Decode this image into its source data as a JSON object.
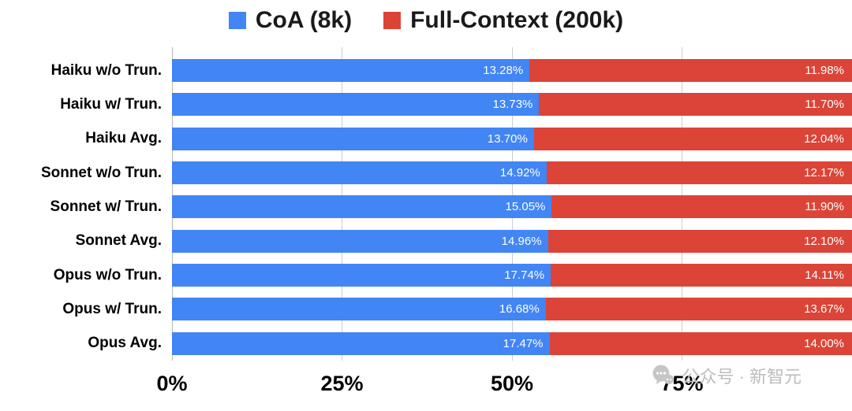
{
  "legend": [
    {
      "label": "CoA (8k)",
      "color": "#4285F4"
    },
    {
      "label": "Full-Context (200k)",
      "color": "#DB4437"
    }
  ],
  "chart_data": {
    "type": "bar",
    "orientation": "horizontal",
    "stacked": "percent",
    "title": "",
    "categories": [
      "Haiku w/o Trun.",
      "Haiku w/ Trun.",
      "Haiku Avg.",
      "Sonnet w/o Trun.",
      "Sonnet w/ Trun.",
      "Sonnet Avg.",
      "Opus w/o Trun.",
      "Opus w/ Trun.",
      "Opus Avg."
    ],
    "series": [
      {
        "name": "CoA (8k)",
        "color": "#4285F4",
        "values": [
          13.28,
          13.73,
          13.7,
          14.92,
          15.05,
          14.96,
          17.74,
          16.68,
          17.47
        ]
      },
      {
        "name": "Full-Context (200k)",
        "color": "#DB4437",
        "values": [
          11.98,
          11.7,
          12.04,
          12.17,
          11.9,
          12.1,
          14.11,
          13.67,
          14.0
        ]
      }
    ],
    "value_suffix": "%",
    "x_ticks": [
      "0%",
      "25%",
      "50%",
      "75%"
    ],
    "x_tick_positions": [
      0,
      25,
      50,
      75
    ],
    "xlim": [
      0,
      100
    ],
    "grid": true,
    "legend_position": "top"
  },
  "watermark": {
    "icon": "wechat-bubble-icon",
    "text": "公众号 · 新智元"
  }
}
